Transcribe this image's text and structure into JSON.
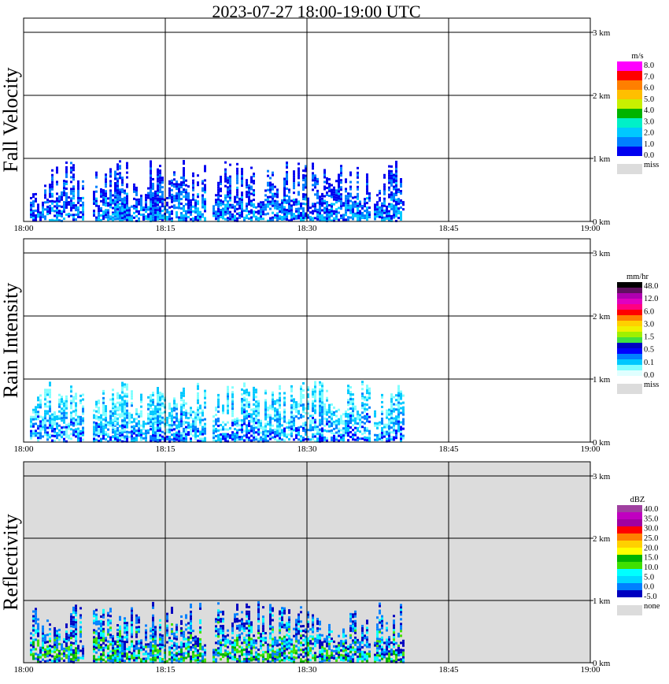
{
  "title": "2023-07-27   18:00-19:00 UTC",
  "x_ticks": [
    "18:00",
    "18:15",
    "18:30",
    "18:45",
    "19:00"
  ],
  "height_ticks": [
    "0 km",
    "1 km",
    "2 km",
    "3 km"
  ],
  "panels": [
    {
      "ylabel": "Fall Velocity",
      "background": "#ffffff",
      "colorbar": {
        "unit": "m/s",
        "swatches": [
          "#ff00ff",
          "#ff0000",
          "#ff7f00",
          "#ffbf00",
          "#c8f000",
          "#00b400",
          "#00f0c8",
          "#00c8ff",
          "#0080ff",
          "#0000f0"
        ],
        "labels": [
          "8.0",
          "7.0",
          "6.0",
          "5.0",
          "4.0",
          "3.0",
          "2.0",
          "1.0",
          "0.0"
        ],
        "miss_label": "miss",
        "miss_color": "#dcdcdc"
      }
    },
    {
      "ylabel": "Rain Intensity",
      "background": "#ffffff",
      "colorbar": {
        "unit": "mm/hr",
        "swatches": [
          "#000000",
          "#601060",
          "#b000b0",
          "#e000c0",
          "#ff0080",
          "#ff0000",
          "#ff8000",
          "#ffd000",
          "#f0f000",
          "#a0f000",
          "#40e040",
          "#0000c0",
          "#0000ff",
          "#0080ff",
          "#00c8ff",
          "#80ffff",
          "#e0ffff"
        ],
        "labels": [
          "48.0",
          "12.0",
          "6.0",
          "3.0",
          "1.5",
          "0.5",
          "0.1",
          "0.0"
        ],
        "miss_label": "miss",
        "miss_color": "#dcdcdc"
      }
    },
    {
      "ylabel": "Reflectivity",
      "background": "#dcdcdc",
      "colorbar": {
        "unit": "dBZ",
        "swatches": [
          "#a040a0",
          "#c000c0",
          "#a000a0",
          "#ff0000",
          "#ff8000",
          "#ffd000",
          "#ffff00",
          "#00b400",
          "#40e000",
          "#00ffff",
          "#00d8ff",
          "#0080ff",
          "#0000c0"
        ],
        "labels": [
          "40.0",
          "35.0",
          "30.0",
          "25.0",
          "20.0",
          "15.0",
          "10.0",
          "5.0",
          "0.0",
          "-5.0"
        ],
        "miss_label": "none",
        "miss_color": "#dcdcdc"
      }
    }
  ]
}
